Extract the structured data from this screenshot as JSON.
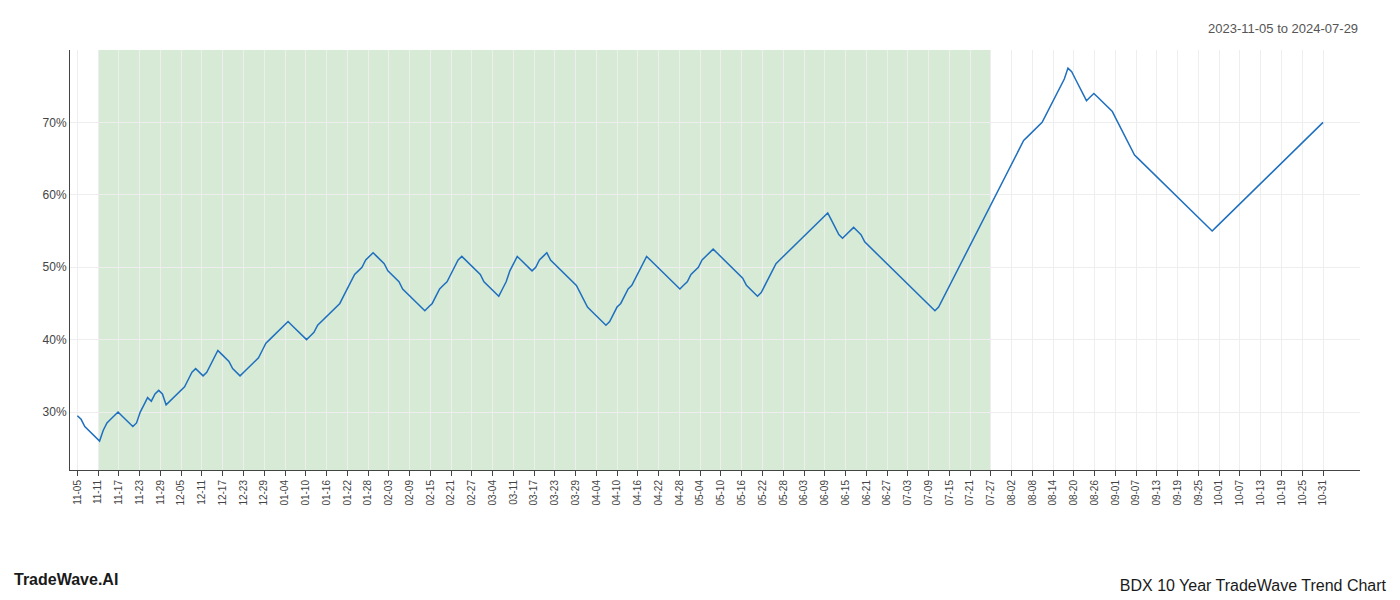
{
  "chart_data": {
    "type": "line",
    "title": "BDX 10 Year TradeWave Trend Chart",
    "subtitle": "2023-11-05 to 2024-07-29",
    "annotations": [
      "TradeWave.AI"
    ],
    "color": "#1f6fbf",
    "grid": true,
    "shade": {
      "from": 5.616667,
      "to": 247.133333,
      "color": "#d6ead6"
    },
    "xlim": [
      -2,
      347
    ],
    "xticks": [
      {
        "value": 0,
        "label": "11-05"
      },
      {
        "value": 5.616667,
        "label": "11-11"
      },
      {
        "value": 11.233333,
        "label": "11-17"
      },
      {
        "value": 16.85,
        "label": "11-23"
      },
      {
        "value": 22.466667,
        "label": "11-29"
      },
      {
        "value": 28.083333,
        "label": "12-05"
      },
      {
        "value": 33.7,
        "label": "12-11"
      },
      {
        "value": 39.316667,
        "label": "12-17"
      },
      {
        "value": 44.933333,
        "label": "12-23"
      },
      {
        "value": 50.55,
        "label": "12-29"
      },
      {
        "value": 56.166667,
        "label": "01-04"
      },
      {
        "value": 61.783333,
        "label": "01-10"
      },
      {
        "value": 67.4,
        "label": "01-16"
      },
      {
        "value": 73.016667,
        "label": "01-22"
      },
      {
        "value": 78.633333,
        "label": "01-28"
      },
      {
        "value": 84.25,
        "label": "02-03"
      },
      {
        "value": 89.866667,
        "label": "02-09"
      },
      {
        "value": 95.483333,
        "label": "02-15"
      },
      {
        "value": 101.1,
        "label": "02-21"
      },
      {
        "value": 106.716667,
        "label": "02-27"
      },
      {
        "value": 112.333333,
        "label": "03-04"
      },
      {
        "value": 117.95,
        "label": "03-11"
      },
      {
        "value": 123.566667,
        "label": "03-17"
      },
      {
        "value": 129.183333,
        "label": "03-23"
      },
      {
        "value": 134.8,
        "label": "03-29"
      },
      {
        "value": 140.416667,
        "label": "04-04"
      },
      {
        "value": 146.033333,
        "label": "04-10"
      },
      {
        "value": 151.65,
        "label": "04-16"
      },
      {
        "value": 157.266667,
        "label": "04-22"
      },
      {
        "value": 162.883333,
        "label": "04-28"
      },
      {
        "value": 168.5,
        "label": "05-04"
      },
      {
        "value": 174.116667,
        "label": "05-10"
      },
      {
        "value": 179.733333,
        "label": "05-16"
      },
      {
        "value": 185.35,
        "label": "05-22"
      },
      {
        "value": 190.966667,
        "label": "05-28"
      },
      {
        "value": 196.583333,
        "label": "06-03"
      },
      {
        "value": 202.2,
        "label": "06-09"
      },
      {
        "value": 207.816667,
        "label": "06-15"
      },
      {
        "value": 213.433333,
        "label": "06-21"
      },
      {
        "value": 219.05,
        "label": "06-27"
      },
      {
        "value": 224.666667,
        "label": "07-03"
      },
      {
        "value": 230.283333,
        "label": "07-09"
      },
      {
        "value": 235.9,
        "label": "07-15"
      },
      {
        "value": 241.516667,
        "label": "07-21"
      },
      {
        "value": 247.133333,
        "label": "07-27"
      },
      {
        "value": 252.75,
        "label": "08-02"
      },
      {
        "value": 258.366667,
        "label": "08-08"
      },
      {
        "value": 263.983333,
        "label": "08-14"
      },
      {
        "value": 269.6,
        "label": "08-20"
      },
      {
        "value": 275.216667,
        "label": "08-26"
      },
      {
        "value": 280.833333,
        "label": "09-01"
      },
      {
        "value": 286.45,
        "label": "09-07"
      },
      {
        "value": 292.066667,
        "label": "09-13"
      },
      {
        "value": 297.683333,
        "label": "09-19"
      },
      {
        "value": 303.3,
        "label": "09-25"
      },
      {
        "value": 308.916667,
        "label": "10-01"
      },
      {
        "value": 314.533333,
        "label": "10-07"
      },
      {
        "value": 320.15,
        "label": "10-13"
      },
      {
        "value": 325.766667,
        "label": "10-19"
      },
      {
        "value": 331.383333,
        "label": "10-25"
      },
      {
        "value": 337,
        "label": "10-31"
      }
    ],
    "ylim": [
      22,
      80
    ],
    "yticks": [
      {
        "value": 30,
        "label": "30%"
      },
      {
        "value": 40,
        "label": "40%"
      },
      {
        "value": 50,
        "label": "50%"
      },
      {
        "value": 60,
        "label": "60%"
      },
      {
        "value": 70,
        "label": "70%"
      }
    ],
    "values": [
      29.5,
      29.0,
      28.0,
      27.5,
      27.0,
      26.5,
      26.0,
      27.5,
      28.5,
      29.0,
      29.5,
      30.0,
      29.5,
      29.0,
      28.5,
      28.0,
      28.5,
      30.0,
      31.0,
      32.0,
      31.5,
      32.5,
      33.0,
      32.5,
      31.0,
      31.5,
      32.0,
      32.5,
      33.0,
      33.5,
      34.5,
      35.5,
      36.0,
      35.5,
      35.0,
      35.5,
      36.5,
      37.5,
      38.5,
      38.0,
      37.5,
      37.0,
      36.0,
      35.5,
      35.0,
      35.5,
      36.0,
      36.5,
      37.0,
      37.5,
      38.5,
      39.5,
      40.0,
      40.5,
      41.0,
      41.5,
      42.0,
      42.5,
      42.0,
      41.5,
      41.0,
      40.5,
      40.0,
      40.5,
      41.0,
      42.0,
      42.5,
      43.0,
      43.5,
      44.0,
      44.5,
      45.0,
      46.0,
      47.0,
      48.0,
      49.0,
      49.5,
      50.0,
      51.0,
      51.5,
      52.0,
      51.5,
      51.0,
      50.5,
      49.5,
      49.0,
      48.5,
      48.0,
      47.0,
      46.5,
      46.0,
      45.5,
      45.0,
      44.5,
      44.0,
      44.5,
      45.0,
      46.0,
      47.0,
      47.5,
      48.0,
      49.0,
      50.0,
      51.0,
      51.5,
      51.0,
      50.5,
      50.0,
      49.5,
      49.0,
      48.0,
      47.5,
      47.0,
      46.5,
      46.0,
      47.0,
      48.0,
      49.5,
      50.5,
      51.5,
      51.0,
      50.5,
      50.0,
      49.5,
      50.0,
      51.0,
      51.5,
      52.0,
      51.0,
      50.5,
      50.0,
      49.5,
      49.0,
      48.5,
      48.0,
      47.5,
      46.5,
      45.5,
      44.5,
      44.0,
      43.5,
      43.0,
      42.5,
      42.0,
      42.5,
      43.5,
      44.5,
      45.0,
      46.0,
      47.0,
      47.5,
      48.5,
      49.5,
      50.5,
      51.5,
      51.0,
      50.5,
      50.0,
      49.5,
      49.0,
      48.5,
      48.0,
      47.5,
      47.0,
      47.5,
      48.0,
      49.0,
      49.5,
      50.0,
      51.0,
      51.5,
      52.0,
      52.5,
      52.0,
      51.5,
      51.0,
      50.5,
      50.0,
      49.5,
      49.0,
      48.5,
      47.5,
      47.0,
      46.5,
      46.0,
      46.5,
      47.5,
      48.5,
      49.5,
      50.5,
      51.0,
      51.5,
      52.0,
      52.5,
      53.0,
      53.5,
      54.0,
      54.5,
      55.0,
      55.5,
      56.0,
      56.5,
      57.0,
      57.5,
      56.5,
      55.5,
      54.5,
      54.0,
      54.5,
      55.0,
      55.5,
      55.0,
      54.5,
      53.5,
      53.0,
      52.5,
      52.0,
      51.5,
      51.0,
      50.5,
      50.0,
      49.5,
      49.0,
      48.5,
      48.0,
      47.5,
      47.0,
      46.5,
      46.0,
      45.5,
      45.0,
      44.5,
      44.0,
      44.5,
      45.5,
      46.5,
      47.5,
      48.5,
      49.5,
      50.5,
      51.5,
      52.5,
      53.5,
      54.5,
      55.5,
      56.5,
      57.5,
      58.5,
      59.5,
      60.5,
      61.5,
      62.5,
      63.5,
      64.5,
      65.5,
      66.5,
      67.5,
      68.0,
      68.5,
      69.0,
      69.5,
      70.0,
      71.0,
      72.0,
      73.0,
      74.0,
      75.0,
      76.0,
      77.5,
      77.0,
      76.0,
      75.0,
      74.0,
      73.0,
      73.5,
      74.0,
      73.5,
      73.0,
      72.5,
      72.0,
      71.5,
      70.5,
      69.5,
      68.5,
      67.5,
      66.5,
      65.5,
      65.0,
      64.5,
      64.0,
      63.5,
      63.0,
      62.5,
      62.0,
      61.5,
      61.0,
      60.5,
      60.0,
      59.5,
      59.0,
      58.5,
      58.0,
      57.5,
      57.0,
      56.5,
      56.0,
      55.5,
      55.0,
      55.5,
      56.0,
      56.5,
      57.0,
      57.5,
      58.0,
      58.5,
      59.0,
      59.5,
      60.0,
      60.5,
      61.0,
      61.5,
      62.0,
      62.5,
      63.0,
      63.5,
      64.0,
      64.5,
      65.0,
      65.5,
      66.0,
      66.5,
      67.0,
      67.5,
      68.0,
      68.5,
      69.0,
      69.5,
      70.0
    ]
  }
}
